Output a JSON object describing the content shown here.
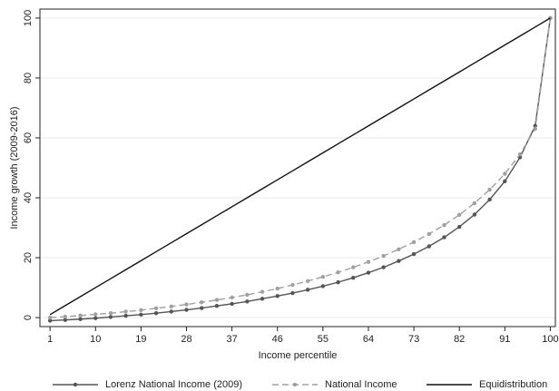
{
  "chart_data": {
    "type": "line",
    "x_label": "Income percentile",
    "y_label": "Income growth (2009-2016)",
    "x": [
      1,
      4,
      7,
      10,
      13,
      16,
      19,
      22,
      25,
      28,
      31,
      34,
      37,
      40,
      43,
      46,
      49,
      52,
      55,
      58,
      61,
      64,
      67,
      70,
      73,
      76,
      79,
      82,
      85,
      88,
      91,
      94,
      97,
      100
    ],
    "series": [
      {
        "name": "Lorenz National Income (2009)",
        "color": "#555555",
        "dash": false,
        "marker": true,
        "values": [
          -1,
          -0.8,
          -0.5,
          -0.2,
          0.2,
          0.6,
          1.0,
          1.5,
          2.0,
          2.6,
          3.2,
          3.9,
          4.6,
          5.4,
          6.3,
          7.2,
          8.2,
          9.3,
          10.5,
          11.8,
          13.3,
          15,
          16.8,
          18.9,
          21.2,
          23.8,
          26.8,
          30.3,
          34.4,
          39.4,
          45.5,
          53.5,
          64,
          100
        ]
      },
      {
        "name": "National Income",
        "color": "#a0a0a0",
        "dash": true,
        "marker": true,
        "values": [
          0,
          0.3,
          0.7,
          1.1,
          1.5,
          2.0,
          2.5,
          3.1,
          3.7,
          4.4,
          5.1,
          5.9,
          6.7,
          7.6,
          8.6,
          9.7,
          10.9,
          12.2,
          13.6,
          15.1,
          16.8,
          18.6,
          20.6,
          22.8,
          25.2,
          27.9,
          30.9,
          34.3,
          38.2,
          42.7,
          48,
          54.5,
          63,
          100
        ]
      },
      {
        "name": "Equidistribution",
        "color": "#111111",
        "dash": false,
        "marker": false,
        "values": [
          1,
          4,
          7,
          10,
          13,
          16,
          19,
          22,
          25,
          28,
          31,
          34,
          37,
          40,
          43,
          46,
          49,
          52,
          55,
          58,
          61,
          64,
          67,
          70,
          73,
          76,
          79,
          82,
          85,
          88,
          91,
          94,
          97,
          100
        ]
      }
    ],
    "xlim": [
      -1,
      101
    ],
    "ylim": [
      -3,
      103
    ],
    "xticks": [
      1,
      10,
      19,
      28,
      37,
      46,
      55,
      64,
      73,
      82,
      91,
      100
    ],
    "yticks": [
      0,
      20,
      40,
      60,
      80,
      100
    ],
    "grid": true
  }
}
